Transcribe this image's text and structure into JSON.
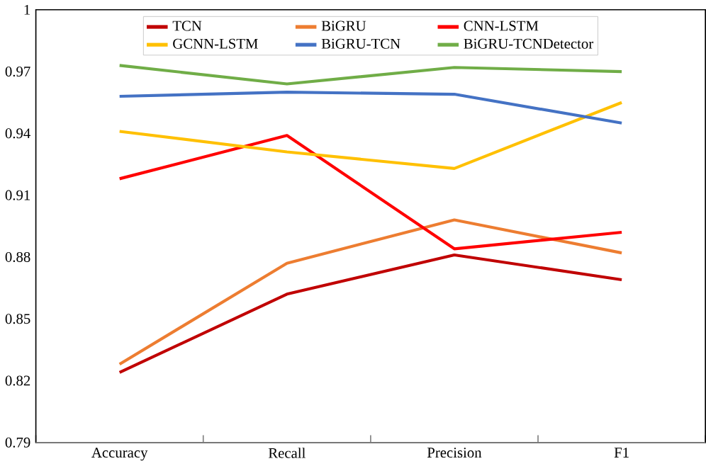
{
  "chart_data": {
    "type": "line",
    "categories": [
      "Accuracy",
      "Recall",
      "Precision",
      "F1"
    ],
    "series": [
      {
        "name": "TCN",
        "color": "#c00000",
        "values": [
          0.824,
          0.862,
          0.881,
          0.869
        ]
      },
      {
        "name": "BiGRU",
        "color": "#ed7d31",
        "values": [
          0.828,
          0.877,
          0.898,
          0.882
        ]
      },
      {
        "name": "CNN-LSTM",
        "color": "#ff0000",
        "values": [
          0.918,
          0.939,
          0.884,
          0.892
        ]
      },
      {
        "name": "GCNN-LSTM",
        "color": "#ffc000",
        "values": [
          0.941,
          0.931,
          0.923,
          0.955
        ]
      },
      {
        "name": "BiGRU-TCN",
        "color": "#4472c4",
        "values": [
          0.958,
          0.96,
          0.959,
          0.945
        ]
      },
      {
        "name": "BiGRU-TCNDetector",
        "color": "#70ad47",
        "values": [
          0.973,
          0.964,
          0.972,
          0.97
        ]
      }
    ],
    "ylim": [
      0.79,
      1
    ],
    "yticks": [
      0.79,
      0.82,
      0.85,
      0.88,
      0.91,
      0.94,
      0.97,
      1
    ],
    "grid": false,
    "legend": "top",
    "marker": "none",
    "line_style": "solid"
  }
}
